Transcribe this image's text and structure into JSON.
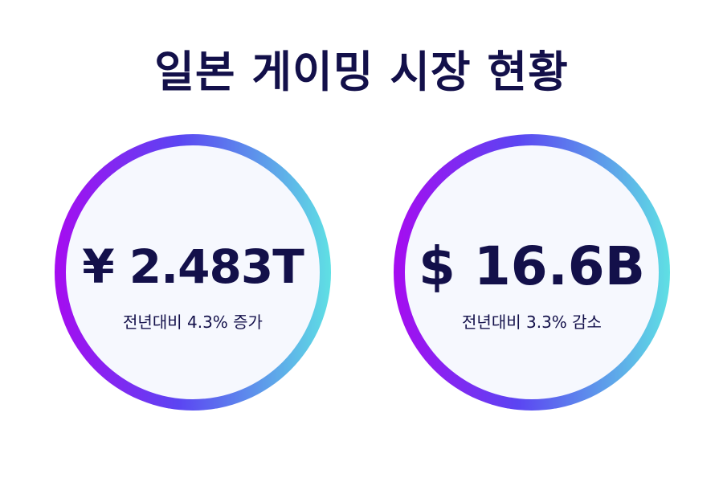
{
  "title": "일본 게이밍 시장 현황",
  "stats": [
    {
      "value": "¥ 2.483T",
      "change": "전년대비 4.3% 증가"
    },
    {
      "value": "$ 16.6B",
      "change": "전년대비 3.3% 감소"
    }
  ],
  "colors": {
    "text": "#13104a",
    "ring_start": "#a60cf0",
    "ring_mid": "#5b45f2",
    "ring_end": "#5fe0e4",
    "circle_fill": "#f6f8fe"
  }
}
